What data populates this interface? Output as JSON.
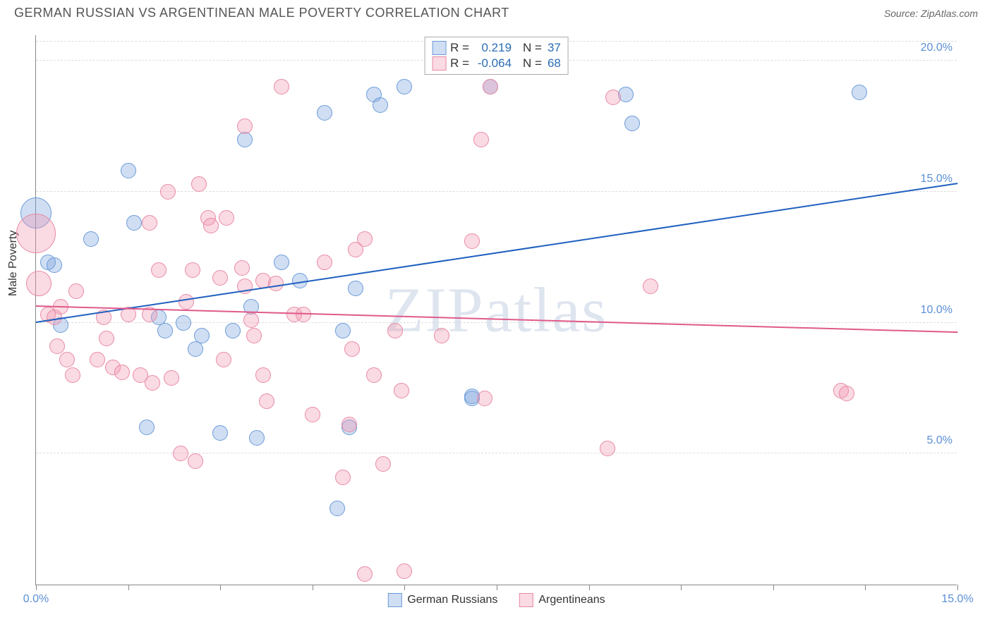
{
  "title": "GERMAN RUSSIAN VS ARGENTINEAN MALE POVERTY CORRELATION CHART",
  "source": "Source: ZipAtlas.com",
  "ylabel": "Male Poverty",
  "watermark": "ZIPatlas",
  "chart": {
    "type": "scatter",
    "xlim": [
      0,
      15
    ],
    "ylim": [
      0,
      21
    ],
    "x_ticks": [
      0,
      1.5,
      3,
      4.5,
      6,
      7.5,
      9,
      10.5,
      12,
      13.5,
      15
    ],
    "x_tick_labels": {
      "0": "0.0%",
      "15": "15.0%"
    },
    "y_gridlines": [
      5,
      10,
      15,
      20
    ],
    "y_tick_labels": {
      "5": "5.0%",
      "10": "10.0%",
      "15": "15.0%",
      "20": "20.0%"
    },
    "grid_color": "#dddddd",
    "axis_color": "#888888",
    "background_color": "#ffffff",
    "tick_label_color": "#5b8fd6",
    "series": [
      {
        "name": "German Russians",
        "fill": "rgba(120,160,220,0.35)",
        "stroke": "#6a9bd8",
        "line_color": "#1f5fbf",
        "marker_radius": 11,
        "regression": {
          "x1": 0,
          "y1": 10.0,
          "x2": 15,
          "y2": 15.3
        },
        "r": "0.219",
        "n": "37",
        "points": [
          [
            0.0,
            14.2,
            22
          ],
          [
            0.2,
            12.3
          ],
          [
            0.3,
            12.2
          ],
          [
            0.4,
            9.9
          ],
          [
            0.9,
            13.2
          ],
          [
            1.5,
            15.8
          ],
          [
            1.6,
            13.8
          ],
          [
            1.8,
            6.0
          ],
          [
            2.0,
            10.2
          ],
          [
            2.1,
            9.7
          ],
          [
            2.4,
            10.0
          ],
          [
            2.6,
            9.0
          ],
          [
            2.7,
            9.5
          ],
          [
            3.0,
            5.8
          ],
          [
            3.2,
            9.7
          ],
          [
            3.4,
            17.0
          ],
          [
            3.6,
            5.6
          ],
          [
            3.5,
            10.6
          ],
          [
            4.0,
            12.3
          ],
          [
            4.3,
            11.6
          ],
          [
            4.7,
            18.0
          ],
          [
            4.9,
            2.9
          ],
          [
            5.0,
            9.7
          ],
          [
            5.1,
            6.0
          ],
          [
            5.2,
            11.3
          ],
          [
            5.5,
            18.7
          ],
          [
            5.6,
            18.3
          ],
          [
            6.0,
            19.0
          ],
          [
            7.1,
            7.2
          ],
          [
            7.4,
            19.0
          ],
          [
            9.7,
            17.6
          ],
          [
            9.6,
            18.7
          ],
          [
            13.4,
            18.8
          ],
          [
            7.1,
            7.1
          ]
        ]
      },
      {
        "name": "Argentineans",
        "fill": "rgba(240,150,175,0.35)",
        "stroke": "#e88aa5",
        "line_color": "#e05a8a",
        "marker_radius": 11,
        "regression": {
          "x1": 0,
          "y1": 10.6,
          "x2": 15,
          "y2": 9.6
        },
        "r": "-0.064",
        "n": "68",
        "points": [
          [
            0.0,
            13.4,
            28
          ],
          [
            0.05,
            11.5,
            18
          ],
          [
            0.2,
            10.3
          ],
          [
            0.3,
            10.2
          ],
          [
            0.35,
            9.1
          ],
          [
            0.4,
            10.6
          ],
          [
            0.5,
            8.6
          ],
          [
            0.6,
            8.0
          ],
          [
            0.65,
            11.2
          ],
          [
            1.0,
            8.6
          ],
          [
            1.1,
            10.2
          ],
          [
            1.15,
            9.4
          ],
          [
            1.25,
            8.3
          ],
          [
            1.4,
            8.1
          ],
          [
            1.5,
            10.3
          ],
          [
            1.7,
            8.0
          ],
          [
            1.85,
            10.3
          ],
          [
            1.85,
            13.8
          ],
          [
            1.9,
            7.7
          ],
          [
            2.0,
            12.0
          ],
          [
            2.15,
            15.0
          ],
          [
            2.2,
            7.9
          ],
          [
            2.35,
            5.0
          ],
          [
            2.45,
            10.8
          ],
          [
            2.55,
            12.0
          ],
          [
            2.6,
            4.7
          ],
          [
            2.65,
            15.3
          ],
          [
            2.8,
            14.0
          ],
          [
            2.85,
            13.7
          ],
          [
            3.0,
            11.7
          ],
          [
            3.05,
            8.6
          ],
          [
            3.1,
            14.0
          ],
          [
            3.35,
            12.1
          ],
          [
            3.4,
            11.4
          ],
          [
            3.4,
            17.5
          ],
          [
            3.5,
            10.1
          ],
          [
            3.55,
            9.5
          ],
          [
            3.7,
            8.0
          ],
          [
            3.7,
            11.6
          ],
          [
            3.75,
            7.0
          ],
          [
            3.9,
            11.5
          ],
          [
            4.0,
            19.0
          ],
          [
            4.2,
            10.3
          ],
          [
            4.35,
            10.3
          ],
          [
            4.5,
            6.5
          ],
          [
            4.7,
            12.3
          ],
          [
            5.0,
            4.1
          ],
          [
            5.1,
            6.1
          ],
          [
            5.15,
            9.0
          ],
          [
            5.2,
            12.8
          ],
          [
            5.35,
            13.2
          ],
          [
            5.35,
            0.4
          ],
          [
            5.5,
            8.0
          ],
          [
            5.65,
            4.6
          ],
          [
            5.85,
            9.7
          ],
          [
            5.95,
            7.4
          ],
          [
            6.0,
            0.5
          ],
          [
            6.6,
            9.5
          ],
          [
            7.1,
            13.1
          ],
          [
            7.25,
            17.0
          ],
          [
            7.3,
            7.1
          ],
          [
            7.4,
            19.0
          ],
          [
            9.3,
            5.2
          ],
          [
            9.4,
            18.6
          ],
          [
            10.0,
            11.4
          ],
          [
            13.1,
            7.4
          ],
          [
            13.2,
            7.3
          ]
        ]
      }
    ]
  },
  "legend_top": [
    {
      "series": 0
    },
    {
      "series": 1
    }
  ],
  "legend_bottom": [
    {
      "series": 0
    },
    {
      "series": 1
    }
  ]
}
